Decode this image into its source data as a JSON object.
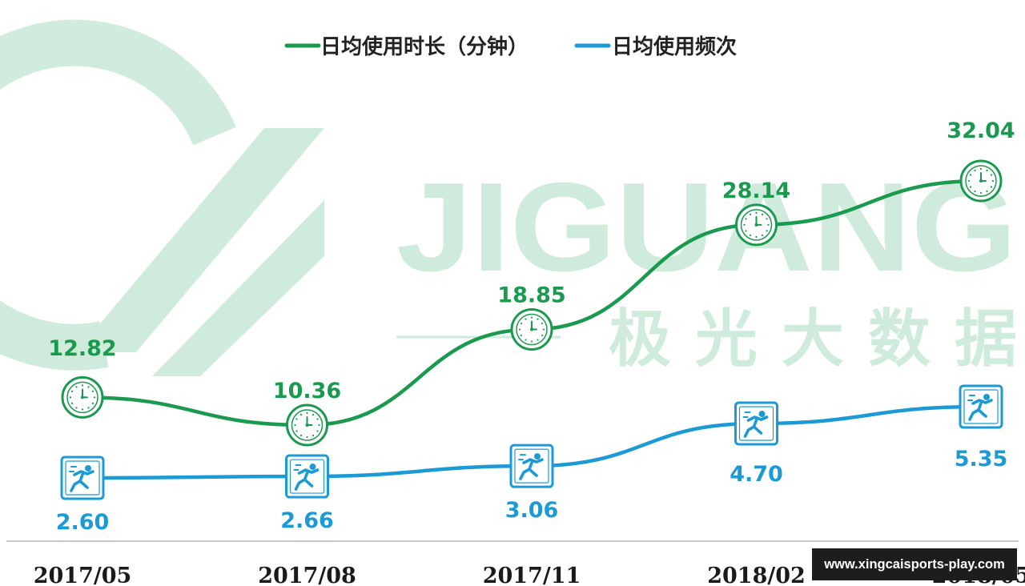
{
  "watermark": {
    "brand": "JIGUANG",
    "brand_cn": "极光大数据"
  },
  "url_badge": "www.xingcaisports-play.com",
  "chart_data": {
    "type": "line",
    "title": "",
    "xlabel": "",
    "ylabel": "",
    "categories": [
      "2017/05",
      "2017/08",
      "2017/11",
      "2018/02",
      "2018/05"
    ],
    "series": [
      {
        "name": "日均使用时长（分钟）",
        "values": [
          12.82,
          10.36,
          18.85,
          28.14,
          32.04
        ],
        "labels": [
          "12.82",
          "10.36",
          "18.85",
          "28.14",
          "32.04"
        ],
        "color": "#1a9a4e",
        "marker": "clock-icon"
      },
      {
        "name": "日均使用频次",
        "values": [
          2.6,
          2.66,
          3.06,
          4.7,
          5.35
        ],
        "labels": [
          "2.60",
          "2.66",
          "3.06",
          "4.70",
          "5.35"
        ],
        "color": "#1b9ad6",
        "marker": "runner-icon"
      }
    ],
    "grid": false,
    "legend": "top-center"
  }
}
